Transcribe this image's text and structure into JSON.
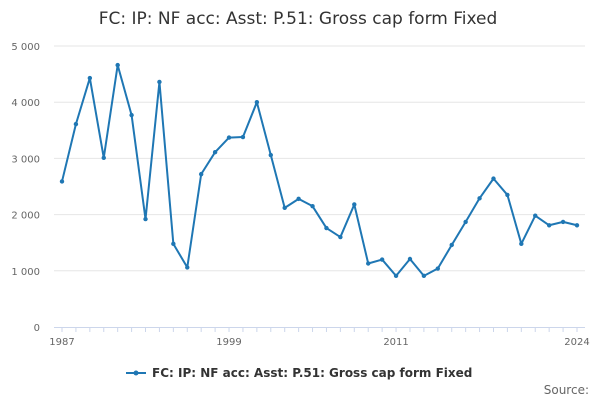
{
  "chart_data": {
    "type": "line",
    "title": "FC: IP: NF acc: Asst: P.51: Gross cap form Fixed",
    "xlabel": "",
    "ylabel": "",
    "x": [
      1987,
      1988,
      1989,
      1990,
      1991,
      1992,
      1993,
      1994,
      1995,
      1996,
      1997,
      1998,
      1999,
      2000,
      2001,
      2002,
      2003,
      2004,
      2005,
      2006,
      2007,
      2008,
      2009,
      2010,
      2011,
      2012,
      2013,
      2014,
      2015,
      2016,
      2017,
      2018,
      2019,
      2020,
      2021,
      2022,
      2023,
      2024
    ],
    "series": [
      {
        "name": "FC: IP: NF acc: Asst: P.51: Gross cap form Fixed",
        "color": "#1f77b4",
        "values": [
          2590,
          3610,
          4430,
          3010,
          4660,
          3770,
          1920,
          4360,
          1480,
          1060,
          2720,
          3110,
          3370,
          3380,
          4000,
          3060,
          2120,
          2280,
          2150,
          1760,
          1600,
          2180,
          1130,
          1200,
          910,
          1210,
          910,
          1040,
          1460,
          1870,
          2290,
          2640,
          2350,
          1480,
          1980,
          1810,
          1870,
          1810
        ]
      }
    ],
    "xlim": [
      1987,
      2024
    ],
    "ylim": [
      0,
      5000
    ],
    "x_ticks": [
      "1987",
      "1999",
      "2011",
      "2024"
    ],
    "y_ticks": [
      "0",
      "1 000",
      "2 000",
      "3 000",
      "4 000",
      "5 000"
    ],
    "grid": "horizontal",
    "legend": "bottom-center"
  },
  "footer": {
    "source_label": "Source:"
  }
}
